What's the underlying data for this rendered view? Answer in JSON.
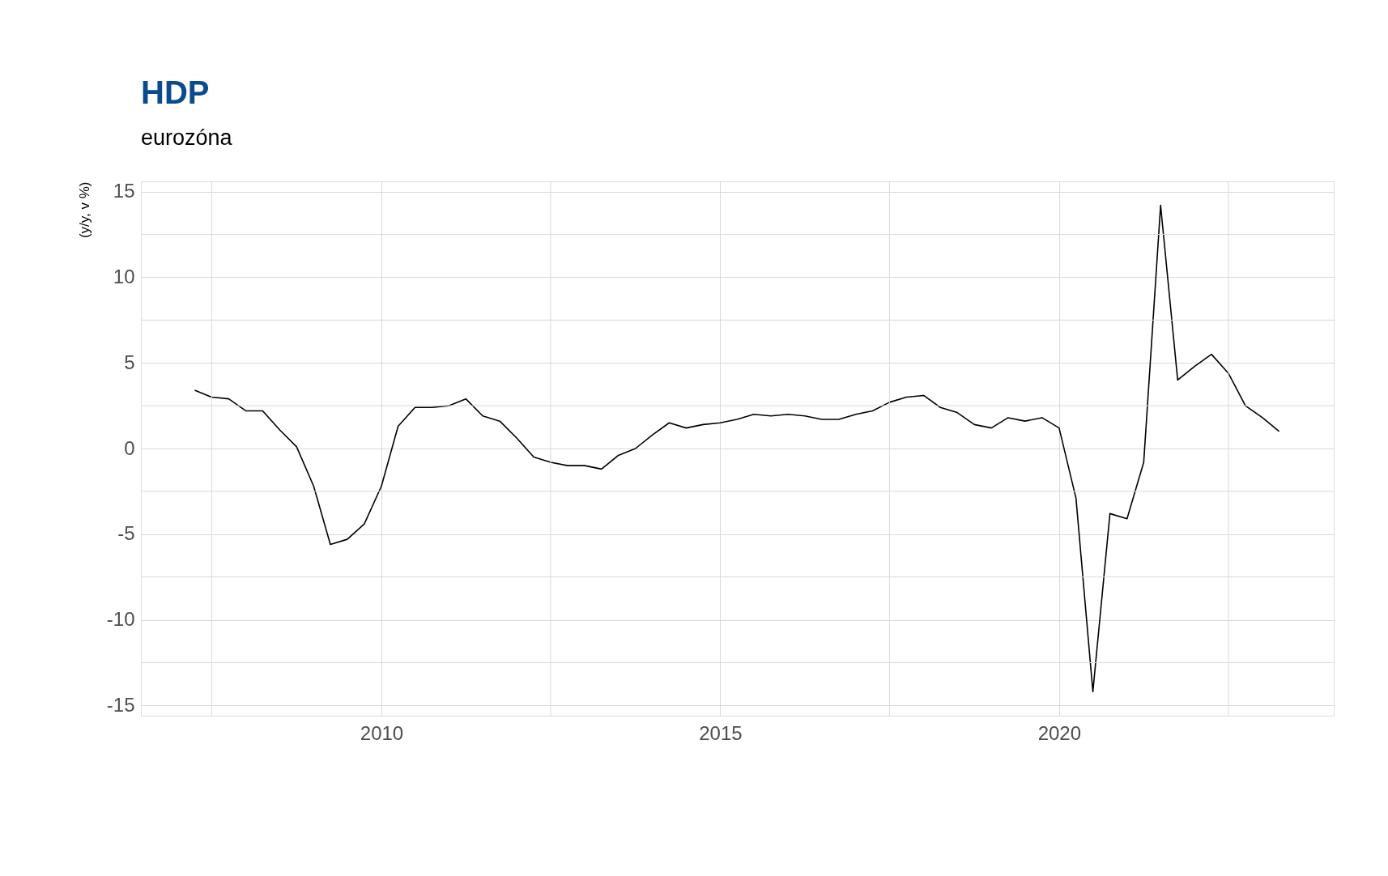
{
  "chart_data": {
    "type": "line",
    "title": "HDP",
    "subtitle": "eurozóna",
    "ylabel": "(y/y, v %)",
    "x": [
      "2007-04",
      "2007-07",
      "2007-10",
      "2008-01",
      "2008-04",
      "2008-07",
      "2008-10",
      "2009-01",
      "2009-04",
      "2009-07",
      "2009-10",
      "2010-01",
      "2010-04",
      "2010-07",
      "2010-10",
      "2011-01",
      "2011-04",
      "2011-07",
      "2011-10",
      "2012-01",
      "2012-04",
      "2012-07",
      "2012-10",
      "2013-01",
      "2013-04",
      "2013-07",
      "2013-10",
      "2014-01",
      "2014-04",
      "2014-07",
      "2014-10",
      "2015-01",
      "2015-04",
      "2015-07",
      "2015-10",
      "2016-01",
      "2016-04",
      "2016-07",
      "2016-10",
      "2017-01",
      "2017-04",
      "2017-07",
      "2017-10",
      "2018-01",
      "2018-04",
      "2018-07",
      "2018-10",
      "2019-01",
      "2019-04",
      "2019-07",
      "2019-10",
      "2020-01",
      "2020-04",
      "2020-07",
      "2020-10",
      "2021-01",
      "2021-04",
      "2021-07",
      "2021-10",
      "2022-01",
      "2022-04",
      "2022-07",
      "2022-10",
      "2023-01",
      "2023-04"
    ],
    "series": [
      {
        "color": "#000000",
        "values": [
          3.4,
          3.0,
          2.9,
          2.2,
          2.2,
          1.1,
          0.1,
          -2.2,
          -5.6,
          -5.3,
          -4.4,
          -2.2,
          1.3,
          2.4,
          2.4,
          2.5,
          2.9,
          1.9,
          1.6,
          0.6,
          -0.5,
          -0.8,
          -1.0,
          -1.0,
          -1.2,
          -0.4,
          0.0,
          0.8,
          1.5,
          1.2,
          1.4,
          1.5,
          1.7,
          2.0,
          1.9,
          2.0,
          1.9,
          1.7,
          1.7,
          2.0,
          2.2,
          2.7,
          3.0,
          3.1,
          2.4,
          2.1,
          1.4,
          1.2,
          1.8,
          1.6,
          1.8,
          1.2,
          -2.9,
          -14.2,
          -3.8,
          -4.1,
          -0.8,
          14.2,
          4.0,
          4.8,
          5.5,
          4.4,
          2.5,
          1.8,
          1.0
        ]
      }
    ],
    "xlim": [
      "2006-06-15",
      "2024-01-20"
    ],
    "xticks": [
      {
        "value": "2007-07",
        "label": null
      },
      "2010",
      {
        "value": "2012-07",
        "label": null
      },
      "2015",
      {
        "value": "2017-07",
        "label": null
      },
      "2020",
      {
        "value": "2022-07",
        "label": null
      }
    ],
    "ylim": [
      -15.6,
      15.6
    ],
    "yticks": [
      -15,
      {
        "value": -12.5,
        "label": null
      },
      -10,
      {
        "value": -7.5,
        "label": null
      },
      -5,
      {
        "value": -2.5,
        "label": null
      },
      0,
      {
        "value": 2.5,
        "label": null
      },
      5,
      {
        "value": 7.5,
        "label": null
      },
      10,
      {
        "value": 12.5,
        "label": null
      },
      15
    ],
    "grid": true,
    "marker": "none",
    "line_style": "solid"
  }
}
